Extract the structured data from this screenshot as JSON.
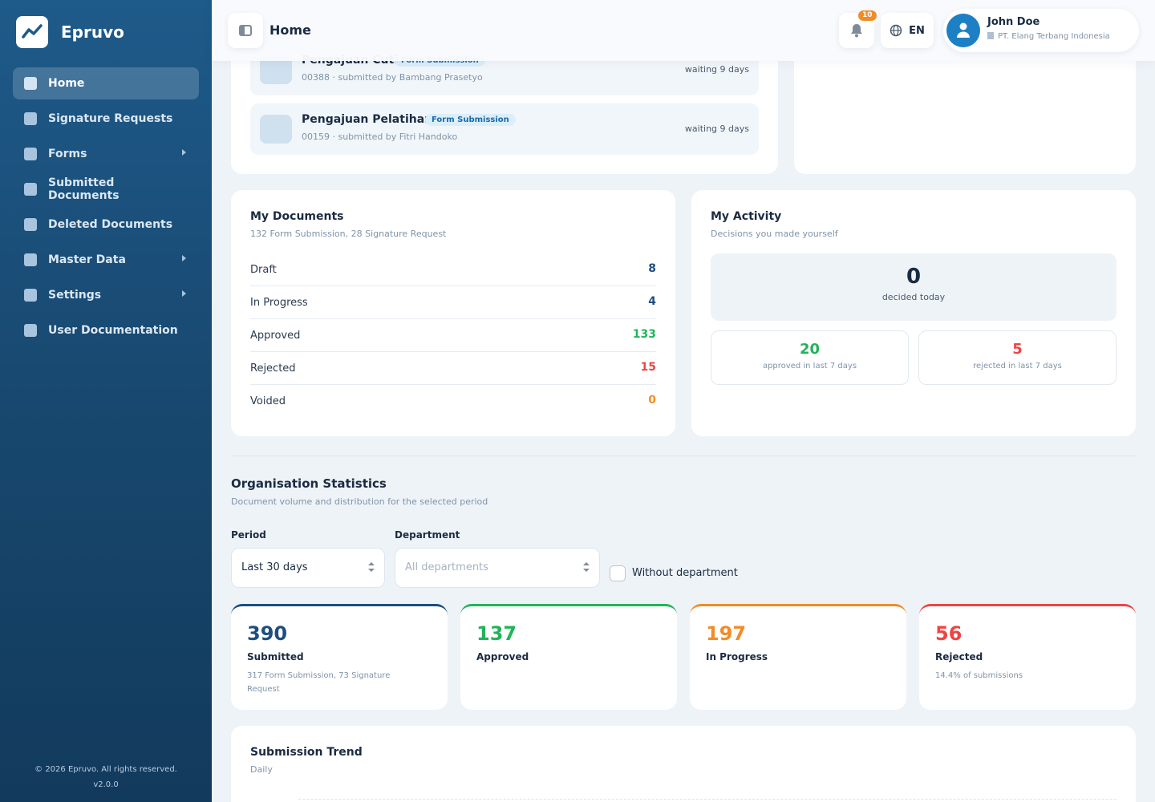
{
  "app": {
    "name": "Epruvo",
    "footer_copyright": "© 2026 Epruvo. All rights reserved.",
    "version": "v2.0.0"
  },
  "sidebar": {
    "items": [
      {
        "label": "Home",
        "icon": "home-icon",
        "active": true
      },
      {
        "label": "Signature Requests",
        "icon": "signature-icon"
      },
      {
        "label": "Forms",
        "icon": "form-icon",
        "has_submenu": true
      },
      {
        "label": "Submitted Documents",
        "icon": "document-icon"
      },
      {
        "label": "Deleted Documents",
        "icon": "trash-icon"
      },
      {
        "label": "Master Data",
        "icon": "database-icon",
        "has_submenu": true
      },
      {
        "label": "Settings",
        "icon": "gear-icon",
        "has_submenu": true
      },
      {
        "label": "User Documentation",
        "icon": "book-icon"
      }
    ]
  },
  "header": {
    "title": "Home",
    "notification_count": "10",
    "language": "EN",
    "user": {
      "name": "John Doe",
      "organization": "PT. Elang Terbang Indonesia"
    }
  },
  "pending": [
    {
      "title": "Pengajuan Cuti",
      "tag": "Form Submission",
      "subtitle": "00388 · submitted by Bambang Prasetyo",
      "waiting": "waiting 9 days"
    },
    {
      "title": "Pengajuan Pelatihan",
      "tag": "Form Submission",
      "subtitle": "00159 · submitted by Fitri Handoko",
      "waiting": "waiting 9 days"
    }
  ],
  "my_documents": {
    "title": "My Documents",
    "subtitle": "132 Form Submission, 28 Signature Request",
    "rows": [
      {
        "label": "Draft",
        "value": "8"
      },
      {
        "label": "In Progress",
        "value": "4"
      },
      {
        "label": "Approved",
        "value": "133"
      },
      {
        "label": "Rejected",
        "value": "15"
      },
      {
        "label": "Voided",
        "value": "0"
      }
    ]
  },
  "my_activity": {
    "title": "My Activity",
    "subtitle": "Decisions you made yourself",
    "today_value": "0",
    "today_label": "decided today",
    "approved_value": "20",
    "approved_label": "approved in last 7 days",
    "rejected_value": "5",
    "rejected_label": "rejected in last 7 days"
  },
  "org_stats": {
    "title": "Organisation Statistics",
    "subtitle": "Document volume and distribution for the selected period",
    "period_label": "Period",
    "period_value": "Last 30 days",
    "department_label": "Department",
    "department_placeholder": "All departments",
    "without_department_label": "Without department",
    "cards": [
      {
        "value": "390",
        "label": "Submitted",
        "sub": "317 Form Submission, 73 Signature Request"
      },
      {
        "value": "137",
        "label": "Approved",
        "sub": ""
      },
      {
        "value": "197",
        "label": "In Progress",
        "sub": ""
      },
      {
        "value": "56",
        "label": "Rejected",
        "sub": "14.4% of submissions"
      }
    ]
  },
  "trend": {
    "title": "Submission Trend",
    "subtitle": "Daily"
  },
  "colors": {
    "primary": "#1d4e7e",
    "green": "#22b35a",
    "orange": "#f28c28",
    "red": "#ef4444",
    "sidebar": "#18486f"
  }
}
